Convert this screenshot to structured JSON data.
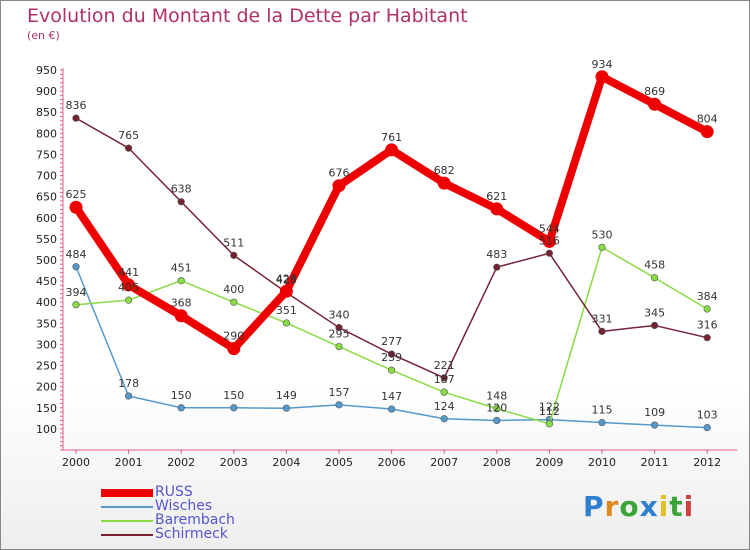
{
  "title": "Evolution du Montant de la Dette par Habitant",
  "subtitle": "(en €)",
  "logo": {
    "letters": [
      "P",
      "r",
      "o",
      "x",
      "i",
      "t",
      "i"
    ],
    "colors": [
      "#2e7fd0",
      "#e08a1e",
      "#3aa63a",
      "#2e7fd0",
      "#e0c01e",
      "#3aa63a",
      "#d04040"
    ]
  },
  "chart_data": {
    "type": "line",
    "x": [
      "2000",
      "2001",
      "2002",
      "2003",
      "2004",
      "2005",
      "2006",
      "2007",
      "2008",
      "2009",
      "2010",
      "2011",
      "2012"
    ],
    "ylim": [
      50,
      950
    ],
    "yticks": [
      100,
      150,
      200,
      250,
      300,
      350,
      400,
      450,
      500,
      550,
      600,
      650,
      700,
      750,
      800,
      850,
      900,
      950
    ],
    "grid": false,
    "legend_position": "bottom-left",
    "series": [
      {
        "name": "RUSS",
        "color": "#ee0000",
        "values": [
          625,
          441,
          368,
          290,
          426,
          676,
          761,
          682,
          621,
          544,
          934,
          869,
          804
        ]
      },
      {
        "name": "Wisches",
        "color": "#5599cc",
        "values": [
          484,
          178,
          150,
          150,
          149,
          157,
          147,
          124,
          120,
          122,
          115,
          109,
          103
        ]
      },
      {
        "name": "Barembach",
        "color": "#88dd44",
        "values": [
          394,
          405,
          451,
          400,
          351,
          295,
          239,
          187,
          148,
          112,
          530,
          458,
          384
        ]
      },
      {
        "name": "Schirmeck",
        "color": "#772233",
        "values": [
          836,
          765,
          638,
          511,
          423,
          340,
          277,
          221,
          483,
          516,
          331,
          345,
          316
        ]
      }
    ]
  }
}
